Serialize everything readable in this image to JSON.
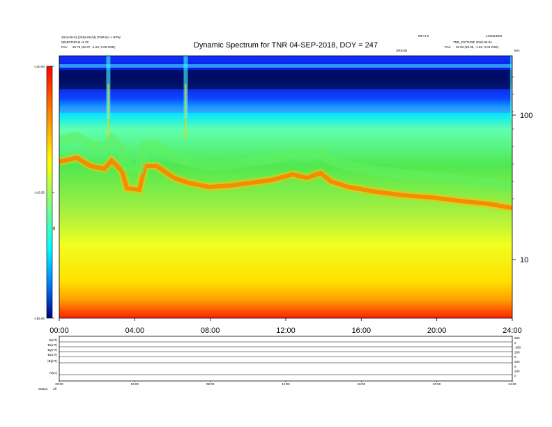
{
  "header": {
    "title": "Dynamic Spectrum for TNR 04-SEP-2018, DOY = 247",
    "meta_left_1": "2018-09-01 [2018-09-04] (TNR-B) -> RPW",
    "meta_left_2": "WIND/TNR-B v1.02",
    "meta_left_3_label": "Pos:",
    "meta_left_3_value": "20.76 (20.37, -1.84, 0.05 GSE)",
    "meta_right_1": "MFI 2.0",
    "meta_right_2": "LOSSLESS",
    "meta_right_3": "TNR_PICTURE 2018-09-04",
    "meta_right_4_label": "Pos:",
    "meta_right_4_value": "20.83 (20.35, -1.82, 0.04 GSE)",
    "crosshair_label": "ORIGIN",
    "khz_label": "kHz"
  },
  "chart_data": {
    "type": "heatmap",
    "title": "Dynamic Spectrum for TNR 04-SEP-2018, DOY = 247",
    "x_ticks": [
      "00:00",
      "04:00",
      "08:00",
      "12:00",
      "16:00",
      "20:00",
      "24:00"
    ],
    "x_range_hours": [
      0,
      24
    ],
    "y_scale": "log",
    "y_ticks_right": [
      "100",
      "10"
    ],
    "colorbar": {
      "ticks": [
        "-130.00",
        "-142.50",
        "-155.00"
      ],
      "range": [
        -155.0,
        -130.0
      ],
      "label": "dB",
      "colors": [
        "#000080",
        "#0000ff",
        "#00c8ff",
        "#00ffff",
        "#80ff80",
        "#ffff00",
        "#ff8000",
        "#ff0000"
      ]
    },
    "features": {
      "interference_band_khz_min": 100,
      "type_iii_bursts_hours": [
        2.6,
        6.7,
        24.0
      ],
      "ridge_description": "red-orange emission ridge near 40-60 kHz decreasing through the day"
    }
  },
  "lower_panel": {
    "row_labels": [
      "B(nT)",
      "Bx(nT)",
      "By(nT)",
      "Bz(nT)",
      "|B|(nT)",
      "N(cc)"
    ],
    "right_values": [
      "200",
      "0",
      "-200",
      "200",
      "0",
      "200",
      "0",
      "200",
      "0"
    ],
    "x_ticks": [
      "00:00",
      "04:00",
      "08:00",
      "12:00",
      "16:00",
      "20:00",
      "24:00"
    ],
    "footer_left": "Status: ",
    "footer_value": "off"
  }
}
